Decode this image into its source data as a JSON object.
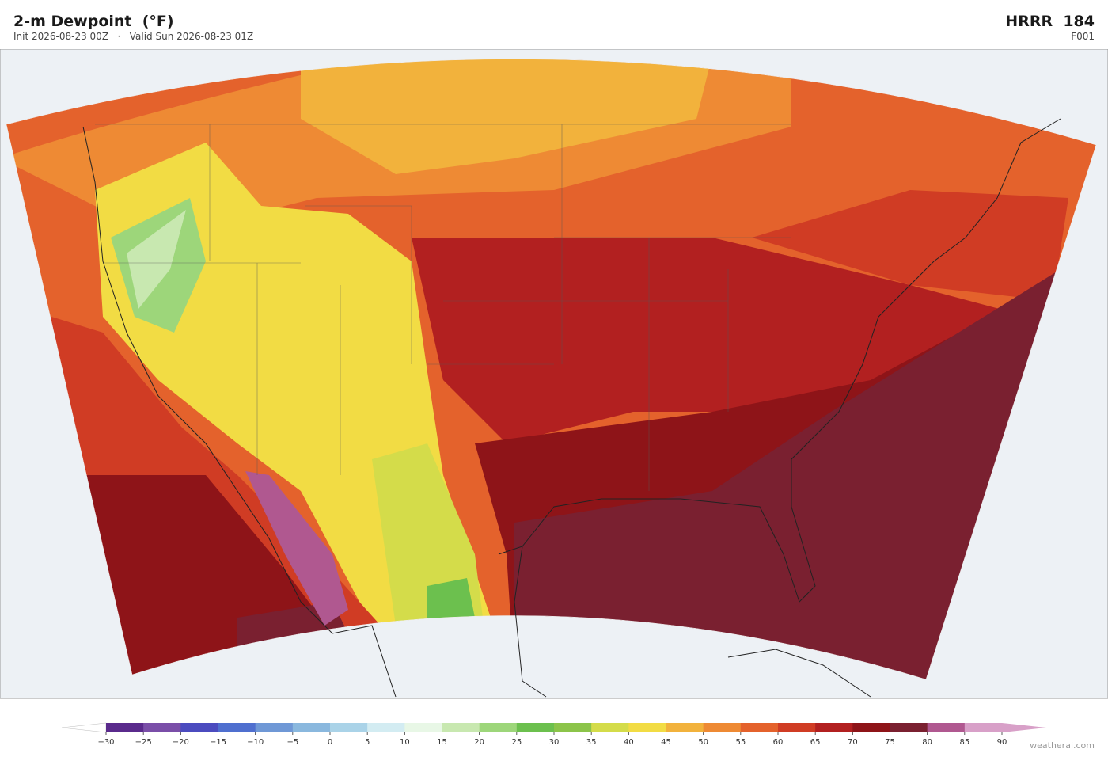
{
  "header": {
    "title": "2-m Dewpoint  (°F)",
    "subtitle": "Init 2026-08-23 00Z   ·   Valid Sun 2026-08-23 01Z",
    "model": "HRRR",
    "run": "184",
    "forecast_hour": "F001"
  },
  "colorbar": {
    "ticks": [
      {
        "value": -30,
        "label": "−30"
      },
      {
        "value": -25,
        "label": "−25"
      },
      {
        "value": -20,
        "label": "−20"
      },
      {
        "value": -15,
        "label": "−15"
      },
      {
        "value": -10,
        "label": "−10"
      },
      {
        "value": -5,
        "label": "−5"
      },
      0,
      5,
      10,
      15,
      20,
      25,
      30,
      35,
      40,
      45,
      50,
      55,
      60,
      65,
      70,
      75,
      80,
      85,
      90
    ],
    "colors": [
      "#5a2a8c",
      "#7a4ea8",
      "#4b4bbf",
      "#4f6fcf",
      "#6f98d6",
      "#8ab8de",
      "#aad3e8",
      "#d3ecf2",
      "#e8f7e6",
      "#c8e8b0",
      "#9dd67a",
      "#6cc04e",
      "#8cc44a",
      "#d4dc4a",
      "#f2dc44",
      "#f2b23c",
      "#ee8a34",
      "#e4622c",
      "#d03c24",
      "#b22020",
      "#8e1418",
      "#7a2030",
      "#b05890",
      "#d8a0c8"
    ],
    "extend_low_color": "#ffffff",
    "extend_high_color": "#d8a0c8"
  },
  "watermark": "weatherai.com"
}
